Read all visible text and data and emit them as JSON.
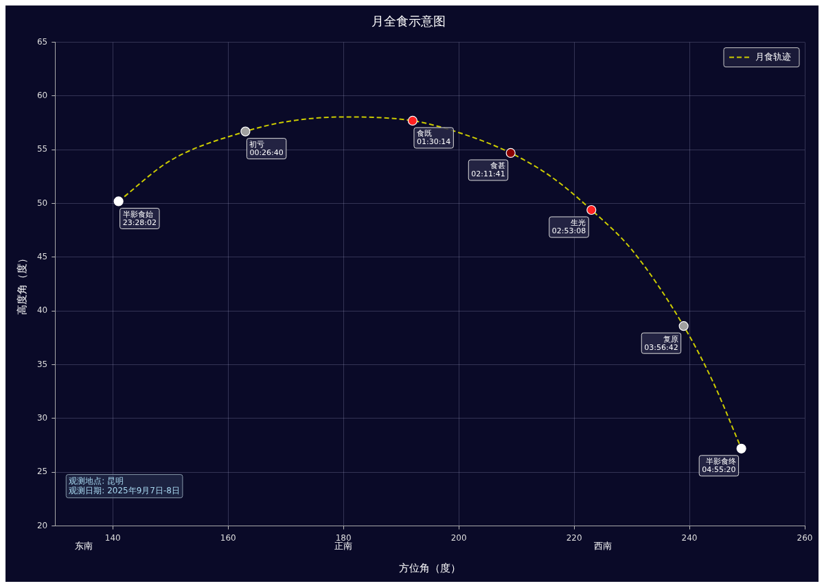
{
  "chart_data": {
    "type": "line",
    "title": "月全食示意图",
    "xlabel": "方位角（度）",
    "ylabel": "高度角（度）",
    "xlim": [
      130,
      260
    ],
    "xticks": [
      140,
      160,
      180,
      200,
      220,
      240,
      260
    ],
    "ylim": [
      20,
      65
    ],
    "yticks": [
      20,
      25,
      30,
      35,
      40,
      45,
      50,
      55,
      60,
      65
    ],
    "grid": true,
    "legend": "top right",
    "series": [
      {
        "name": "月食轨迹",
        "color": "#cccc00",
        "line_style": "dashed",
        "marker": "none",
        "x": [
          141,
          150,
          163,
          170,
          180,
          192,
          200,
          209,
          216,
          223,
          230,
          239,
          244,
          249
        ],
        "values": [
          50.2,
          54.0,
          56.7,
          57.6,
          58.05,
          57.7,
          56.6,
          54.7,
          52.5,
          49.4,
          45.7,
          38.6,
          33.5,
          27.2
        ]
      },
      {
        "type": "scatter",
        "marker": "circle",
        "colors": [
          "#ffffff",
          "#a0a0a0",
          "#ff2020",
          "#8b0000",
          "#ff2020",
          "#a0a0a0",
          "#ffffff"
        ],
        "x": [
          141,
          163,
          192,
          209,
          223,
          239,
          249
        ],
        "values": [
          50.2,
          56.7,
          57.7,
          54.7,
          49.4,
          38.6,
          27.2
        ]
      }
    ],
    "annotations": [
      {
        "text": "半影食始\n23:28:02",
        "x": 141,
        "y": 50.2
      },
      {
        "text": "初亏\n00:26:40",
        "x": 163,
        "y": 56.7
      },
      {
        "text": "食既\n01:30:14",
        "x": 192,
        "y": 57.7
      },
      {
        "text": "食甚\n02:11:41",
        "x": 209,
        "y": 54.7
      },
      {
        "text": "生光\n02:53:08",
        "x": 223,
        "y": 49.4
      },
      {
        "text": "复原\n03:56:42",
        "x": 239,
        "y": 38.6
      },
      {
        "text": "半影食终\n04:55:20",
        "x": 249,
        "y": 27.2
      },
      "东南",
      "正南",
      "西南",
      "观测地点: 昆明",
      "观测日期: 2025年9月7日-8日"
    ]
  }
}
